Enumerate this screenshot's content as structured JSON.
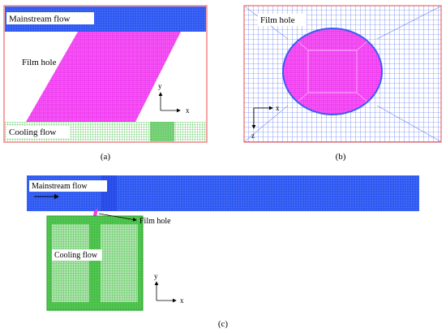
{
  "colors": {
    "mainstream": "#2b57f0",
    "film_hole": "#f03cf0",
    "cooling": "#23b623",
    "mesh_blue": "#3a5cf5",
    "border_red": "#e84a4a",
    "background": "#ffffff"
  },
  "panel_a": {
    "mainstream_label": "Mainstream  flow",
    "film_hole_label": "Film hole",
    "cooling_label": "Cooling flow",
    "axis_y": "y",
    "axis_x": "x",
    "caption": "(a)"
  },
  "panel_b": {
    "film_hole_label": "Film hole",
    "axis_x": "x",
    "axis_z": "z",
    "caption": "(b)"
  },
  "panel_c": {
    "mainstream_label": "Mainstream  flow",
    "film_hole_label": "Film hole",
    "cooling_label": "Cooling flow",
    "axis_y": "y",
    "axis_x": "x",
    "caption": "(c)"
  }
}
